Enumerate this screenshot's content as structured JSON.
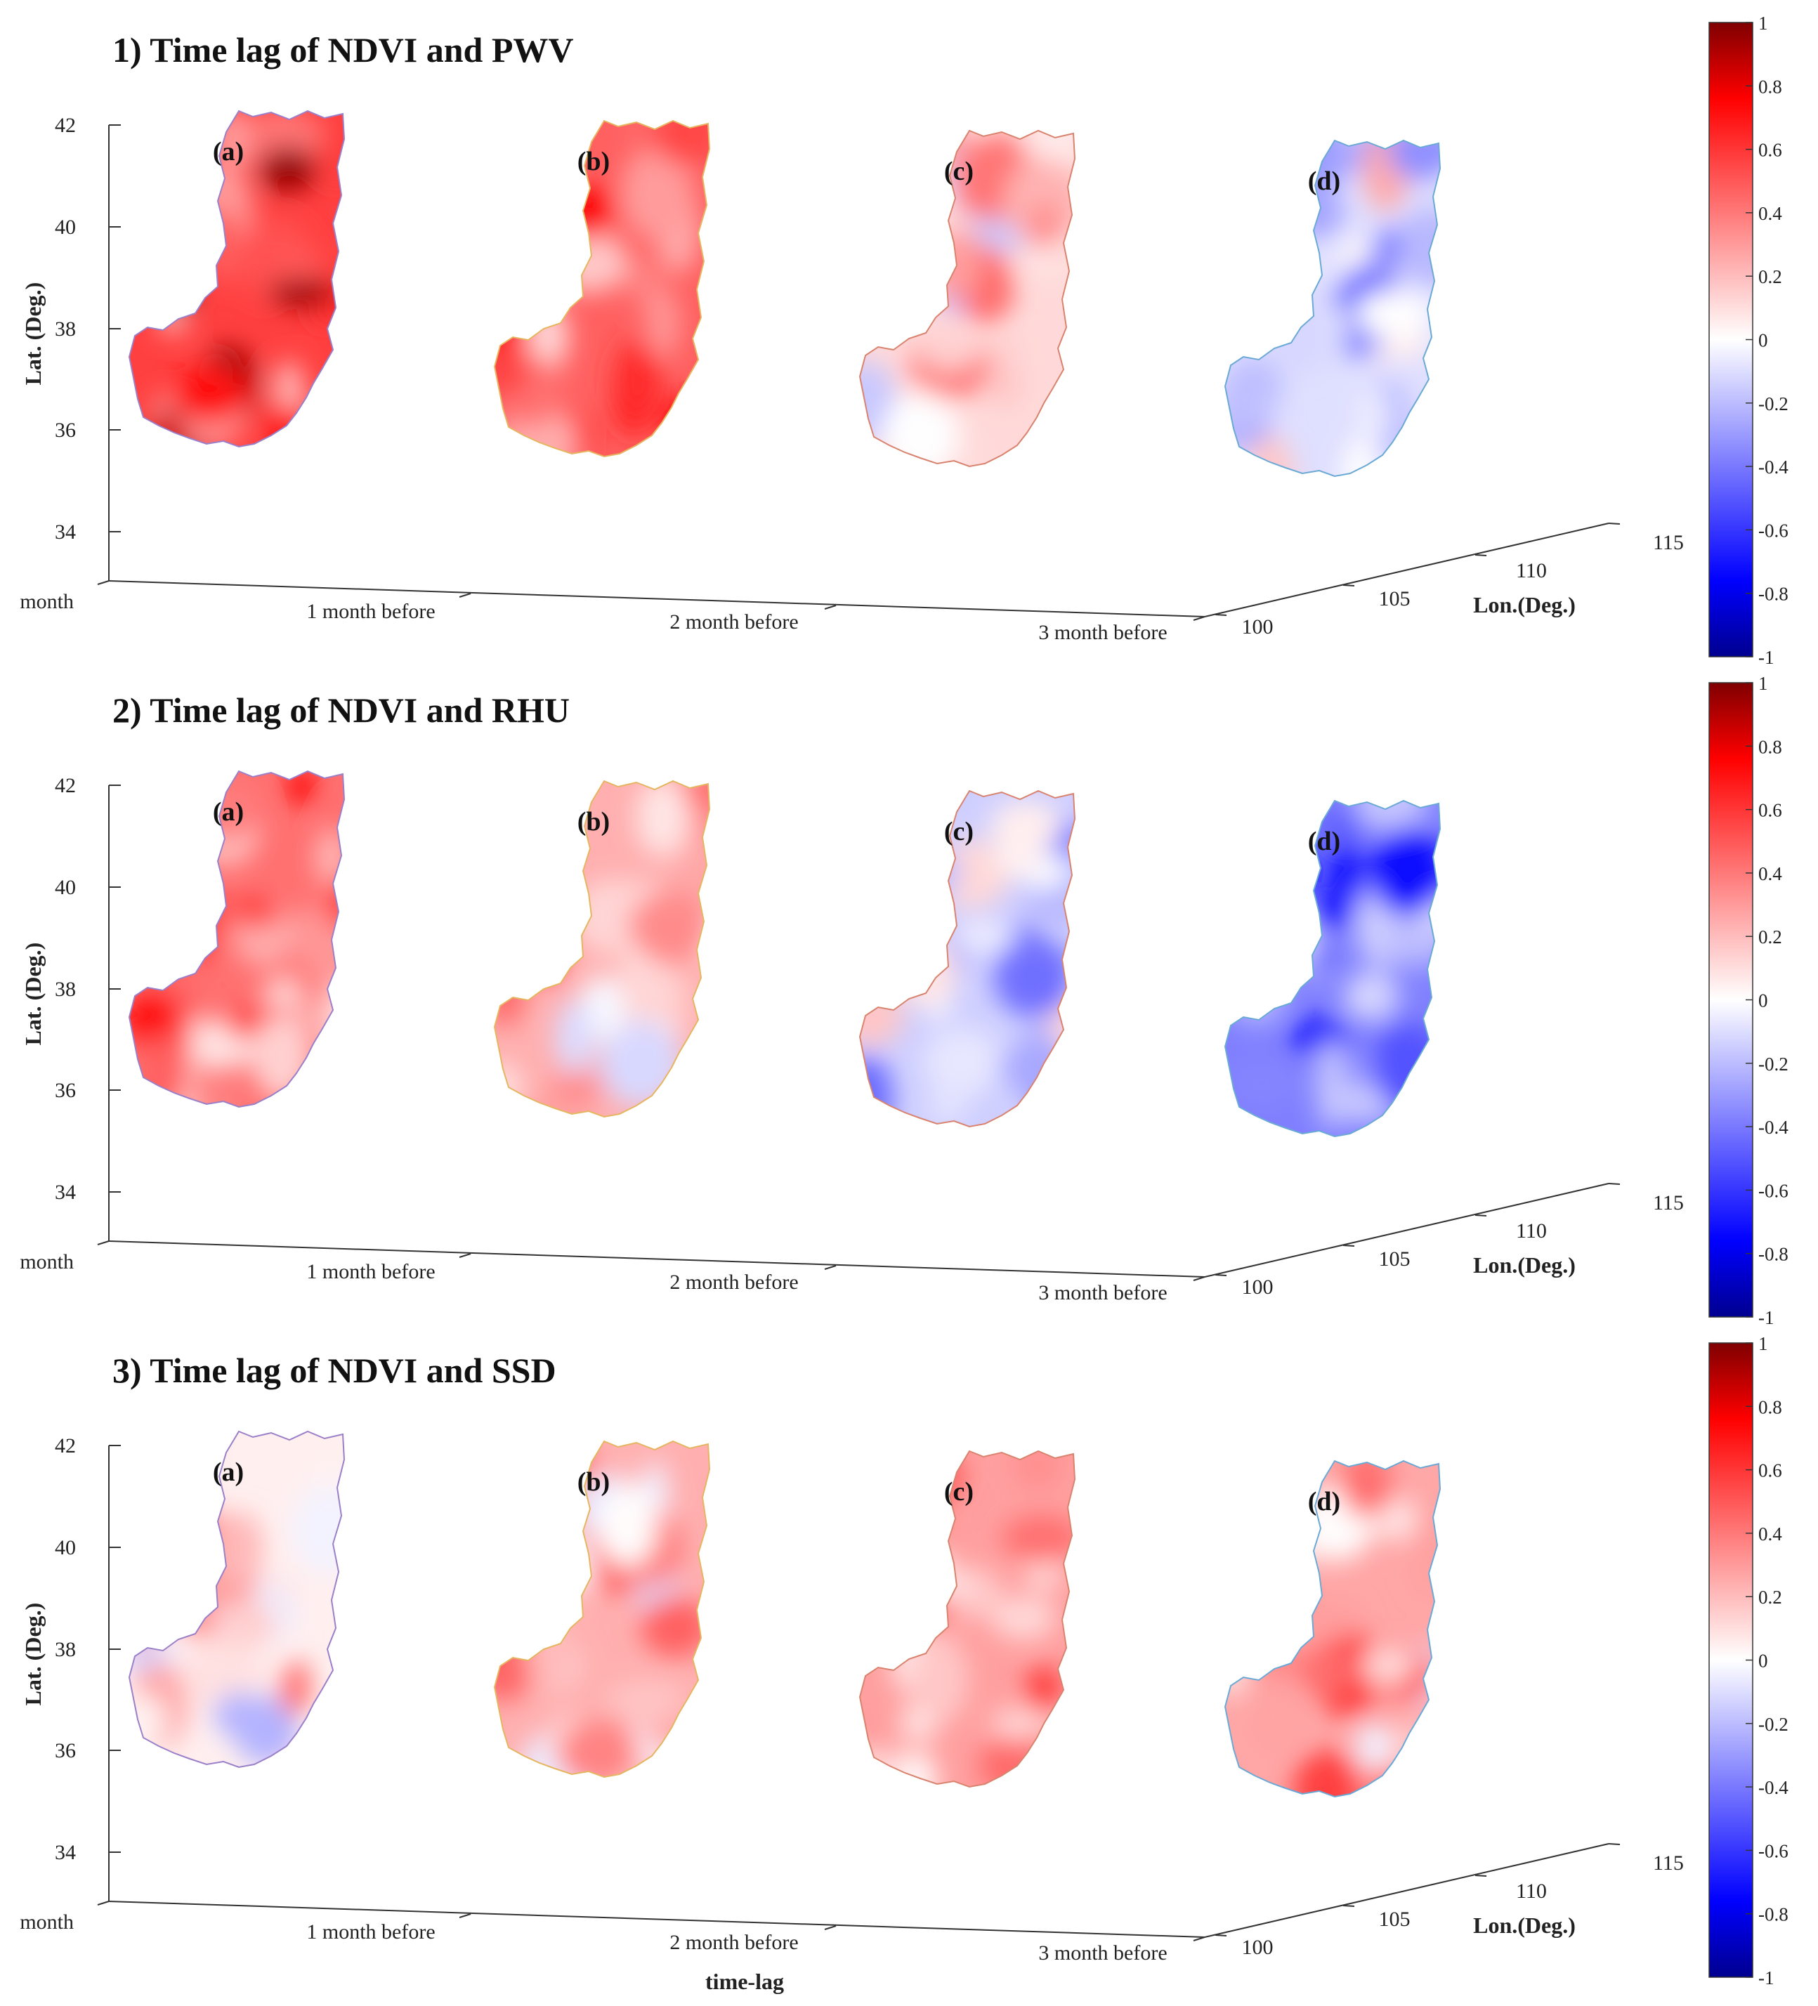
{
  "figure": {
    "bottom_xlabel": "time-lag",
    "colors": {
      "low": "#00008f",
      "mid": "#ffffff",
      "high": "#7f0000"
    }
  },
  "chart_data": [
    {
      "type": "heatmap",
      "title": "1) Time lag of NDVI and PWV",
      "ylabel": "Lat. (Deg.)",
      "zlabel": "Lon.(Deg.)",
      "xlabel": "",
      "lat_ticks": [
        "42",
        "40",
        "38",
        "36",
        "34"
      ],
      "lon_ticks": [
        "100",
        "105",
        "110",
        "115"
      ],
      "lag_ticks": [
        "month",
        "1 month before",
        "2 month before",
        "3 month before"
      ],
      "colorbar": {
        "range": [
          -1,
          1
        ],
        "ticks": [
          "1",
          "0.8",
          "0.6",
          "0.4",
          "0.2",
          "0",
          "-0.2",
          "-0.4",
          "-0.6",
          "-0.8",
          "-1"
        ]
      },
      "subplots": [
        {
          "label": "(a)",
          "lag": "month",
          "mean_correlation": 0.6
        },
        {
          "label": "(b)",
          "lag": "1 month before",
          "mean_correlation": 0.5
        },
        {
          "label": "(c)",
          "lag": "2 month before",
          "mean_correlation": 0.12
        },
        {
          "label": "(d)",
          "lag": "3 month before",
          "mean_correlation": -0.1
        }
      ]
    },
    {
      "type": "heatmap",
      "title": "2) Time lag of NDVI and RHU",
      "ylabel": "Lat. (Deg.)",
      "zlabel": "Lon.(Deg.)",
      "xlabel": "",
      "lat_ticks": [
        "42",
        "40",
        "38",
        "36",
        "34"
      ],
      "lon_ticks": [
        "100",
        "105",
        "110",
        "115"
      ],
      "lag_ticks": [
        "month",
        "1 month before",
        "2 month before",
        "3 month before"
      ],
      "colorbar": {
        "range": [
          -1,
          1
        ],
        "ticks": [
          "1",
          "0.8",
          "0.6",
          "0.4",
          "0.2",
          "0",
          "-0.2",
          "-0.4",
          "-0.6",
          "-0.8",
          "-1"
        ]
      },
      "subplots": [
        {
          "label": "(a)",
          "lag": "month",
          "mean_correlation": 0.45
        },
        {
          "label": "(b)",
          "lag": "1 month before",
          "mean_correlation": 0.25
        },
        {
          "label": "(c)",
          "lag": "2 month before",
          "mean_correlation": -0.15
        },
        {
          "label": "(d)",
          "lag": "3 month before",
          "mean_correlation": -0.4
        }
      ]
    },
    {
      "type": "heatmap",
      "title": "3) Time lag of NDVI and SSD",
      "ylabel": "Lat. (Deg.)",
      "zlabel": "Lon.(Deg.)",
      "xlabel": "time-lag",
      "lat_ticks": [
        "42",
        "40",
        "38",
        "36",
        "34"
      ],
      "lon_ticks": [
        "100",
        "105",
        "110",
        "115"
      ],
      "lag_ticks": [
        "month",
        "1 month before",
        "2 month before",
        "3 month before"
      ],
      "colorbar": {
        "range": [
          -1,
          1
        ],
        "ticks": [
          "1",
          "0.8",
          "0.6",
          "0.4",
          "0.2",
          "0",
          "-0.2",
          "-0.4",
          "-0.6",
          "-0.8",
          "-1"
        ]
      },
      "subplots": [
        {
          "label": "(a)",
          "lag": "month",
          "mean_correlation": 0.05
        },
        {
          "label": "(b)",
          "lag": "1 month before",
          "mean_correlation": 0.25
        },
        {
          "label": "(c)",
          "lag": "2 month before",
          "mean_correlation": 0.3
        },
        {
          "label": "(d)",
          "lag": "3 month before",
          "mean_correlation": 0.28
        }
      ]
    }
  ]
}
